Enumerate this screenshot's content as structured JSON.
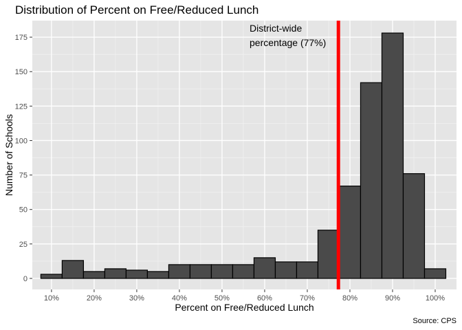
{
  "chart_data": {
    "type": "bar",
    "title": "Distribution of Percent on Free/Reduced Lunch",
    "xlabel": "Percent on Free/Reduced Lunch",
    "ylabel": "Number of Schools",
    "caption": "Source: CPS",
    "xlim": [
      5.5,
      105
    ],
    "ylim": [
      -8,
      187
    ],
    "x_ticks": [
      10,
      20,
      30,
      40,
      50,
      60,
      70,
      80,
      90,
      100
    ],
    "x_tick_labels": [
      "10%",
      "20%",
      "30%",
      "40%",
      "50%",
      "60%",
      "70%",
      "80%",
      "90%",
      "100%"
    ],
    "y_ticks": [
      0,
      25,
      50,
      75,
      100,
      125,
      150,
      175
    ],
    "y_tick_labels": [
      "0",
      "25",
      "50",
      "75",
      "100",
      "125",
      "150",
      "175"
    ],
    "bin_width": 5,
    "bin_centers": [
      10,
      15,
      20,
      25,
      30,
      35,
      40,
      45,
      50,
      55,
      60,
      65,
      70,
      75,
      80,
      85,
      90,
      95,
      100
    ],
    "counts": [
      3,
      13,
      5,
      7,
      6,
      5,
      10,
      10,
      10,
      10,
      15,
      12,
      12,
      35,
      67,
      142,
      178,
      76,
      7
    ],
    "bar_fill": "#4a4a4a",
    "bar_outline": "#000000",
    "panel_background": "#e5e5e5",
    "grid": true,
    "vline": {
      "x": 77.3,
      "color": "#ff0000",
      "label_lines": [
        "District-wide",
        "percentage (77%)"
      ]
    }
  }
}
